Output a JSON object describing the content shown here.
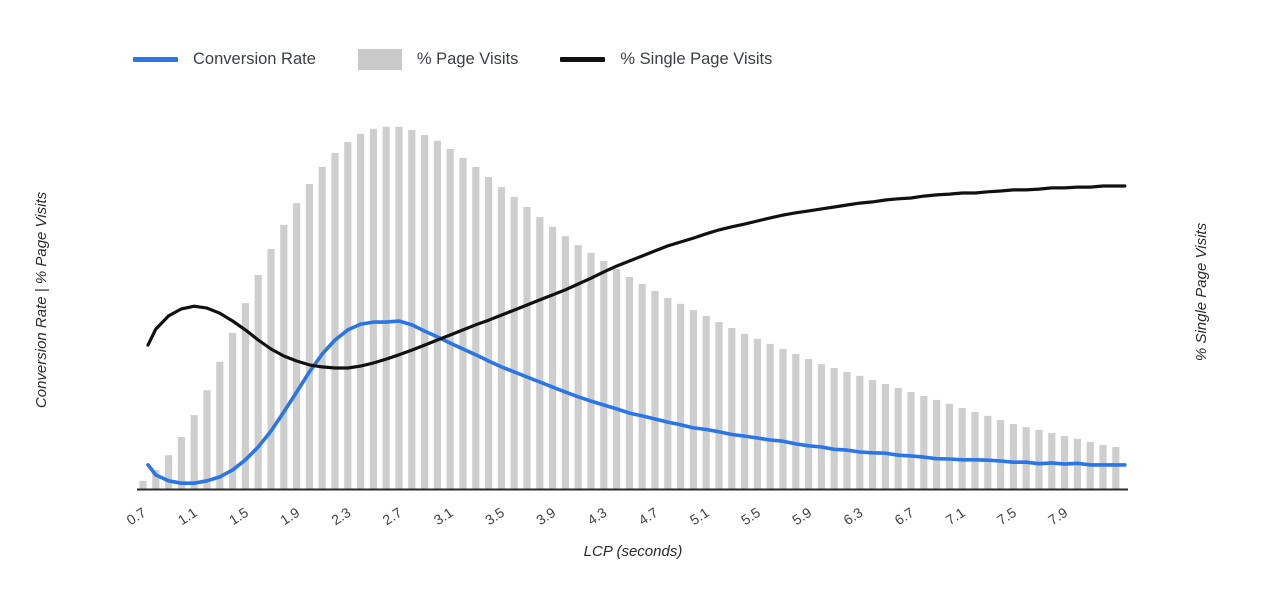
{
  "page": {
    "background": "#ffffff"
  },
  "legend": {
    "items": [
      {
        "label": "Conversion Rate",
        "swatch": "line",
        "color": "#2a76e8"
      },
      {
        "label": "% Page Visits",
        "swatch": "box",
        "color": "#c9c9c9"
      },
      {
        "label": "% Single Page Visits",
        "swatch": "line",
        "color": "#111111"
      }
    ]
  },
  "axes": {
    "x_title": "LCP (seconds)",
    "y_left_title": "Conversion Rate | % Page Visits",
    "y_right_title": "% Single Page Visits",
    "x_ticks": [
      "0.7",
      "1.1",
      "1.5",
      "1.9",
      "2.3",
      "2.7",
      "3.1",
      "3.5",
      "3.9",
      "4.3",
      "4.7",
      "5.1",
      "5.5",
      "5.9",
      "6.3",
      "6.7",
      "7.1",
      "7.5",
      "7.9"
    ]
  },
  "chart_data": {
    "type": "bar",
    "subtype": "combo-bar-and-lines",
    "xlabel": "LCP (seconds)",
    "ylabel_left": "Conversion Rate | % Page Visits",
    "ylabel_right": "% Single Page Visits",
    "x_start": 0.7,
    "x_step": 0.1,
    "x_end": 8.3,
    "x_tick_labels": [
      "0.7",
      "1.1",
      "1.5",
      "1.9",
      "2.3",
      "2.7",
      "3.1",
      "3.5",
      "3.9",
      "4.3",
      "4.7",
      "5.1",
      "5.5",
      "5.9",
      "6.3",
      "6.7",
      "7.1",
      "7.5",
      "7.9"
    ],
    "ylim": [
      0,
      100
    ],
    "y_axis_labels_shown": false,
    "grid": false,
    "legend_position": "top",
    "note": "values estimated as percent of plot height; no numeric y ticks are rendered in the source image",
    "series": [
      {
        "name": "% Page Visits",
        "type": "bar",
        "color": "#cecece",
        "values": [
          2.1,
          4.9,
          8.7,
          13.4,
          19,
          25.4,
          32.7,
          40.1,
          47.8,
          55,
          61.7,
          67.9,
          73.5,
          78.4,
          82.8,
          86.4,
          89.2,
          91.3,
          92.6,
          93.1,
          93.1,
          92.3,
          91,
          89.5,
          87.4,
          85.1,
          82.8,
          80.2,
          77.6,
          75.1,
          72.5,
          69.9,
          67.4,
          65,
          62.7,
          60.7,
          58.6,
          56.6,
          54.5,
          52.7,
          50.9,
          49.1,
          47.6,
          46,
          44.5,
          42.9,
          41.4,
          39.9,
          38.6,
          37.3,
          36,
          34.7,
          33.4,
          32.1,
          31.1,
          30.1,
          29.1,
          28,
          27,
          26,
          24.9,
          23.9,
          22.9,
          21.9,
          20.8,
          19.8,
          18.8,
          17.7,
          16.7,
          15.9,
          15.2,
          14.4,
          13.6,
          12.9,
          12.1,
          11.3,
          10.8
        ]
      },
      {
        "name": "Conversion Rate",
        "type": "line",
        "color": "#2a76e8",
        "values": [
          6.2,
          3.6,
          2.1,
          1.5,
          1.5,
          2.1,
          3.1,
          4.9,
          7.5,
          10.8,
          14.9,
          19.8,
          24.9,
          30.1,
          34.7,
          38.3,
          40.9,
          42.4,
          42.9,
          42.9,
          43.2,
          42.2,
          40.6,
          39.1,
          37.5,
          36,
          34.5,
          32.9,
          31.4,
          30.1,
          28.8,
          27.5,
          26.2,
          24.9,
          23.7,
          22.6,
          21.6,
          20.6,
          19.5,
          18.8,
          18,
          17.2,
          16.5,
          15.7,
          15.3,
          14.7,
          14,
          13.6,
          13.1,
          12.6,
          12.3,
          11.6,
          11.1,
          10.8,
          10.2,
          10,
          9.5,
          9.3,
          9.2,
          8.7,
          8.5,
          8.2,
          7.8,
          7.7,
          7.5,
          7.5,
          7.4,
          7.2,
          6.9,
          6.9,
          6.5,
          6.7,
          6.4,
          6.6,
          6.2,
          6.2,
          6.2
        ]
      },
      {
        "name": "% Single Page Visits",
        "type": "line",
        "color": "#111111",
        "values": [
          37,
          41.1,
          44.5,
          46.3,
          47,
          46.5,
          45.2,
          43.2,
          40.9,
          38.3,
          36,
          34.2,
          32.9,
          31.9,
          31.4,
          31.1,
          31.1,
          31.6,
          32.4,
          33.4,
          34.5,
          35.7,
          37,
          38.3,
          39.6,
          40.9,
          42.2,
          43.4,
          44.7,
          46,
          47.3,
          48.6,
          49.9,
          51.2,
          52.7,
          54.2,
          55.8,
          57.3,
          58.6,
          59.9,
          61.2,
          62.5,
          63.5,
          64.5,
          65.6,
          66.6,
          67.4,
          68.1,
          68.9,
          69.7,
          70.4,
          71,
          71.5,
          72,
          72.5,
          73,
          73.5,
          73.8,
          74.3,
          74.6,
          74.8,
          75.3,
          75.6,
          75.8,
          76.1,
          76.1,
          76.4,
          76.6,
          76.9,
          76.9,
          77.1,
          77.4,
          77.4,
          77.6,
          77.6,
          77.9,
          77.9
        ]
      }
    ]
  }
}
